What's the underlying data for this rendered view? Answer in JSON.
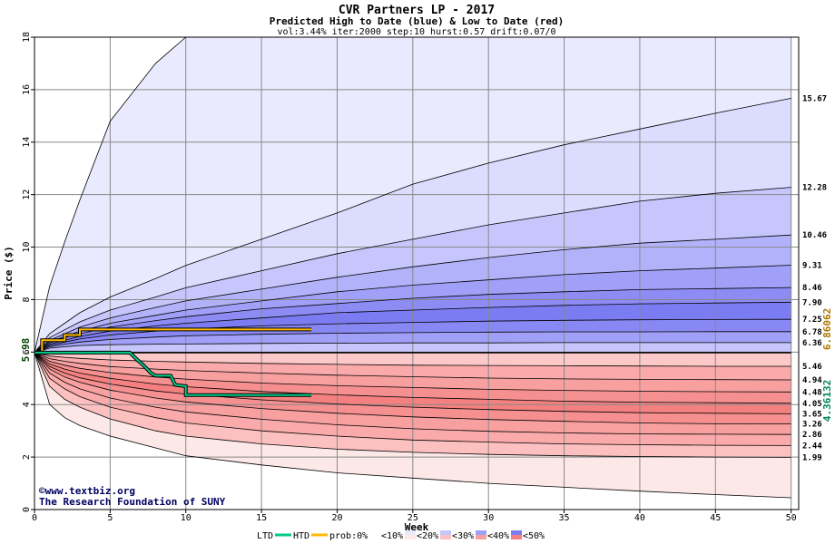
{
  "chart_data": {
    "type": "area",
    "title": "CVR Partners LP - 2017",
    "subtitle": "Predicted High to Date (blue) &  Low to Date (red)",
    "params": "vol:3.44% iter:2000 step:10 hurst:0.57 drift:0.07/0",
    "xlabel": "Week",
    "ylabel": "Price ($)",
    "xlim": [
      0,
      50.5
    ],
    "ylim": [
      0,
      18
    ],
    "x_ticks": [
      0,
      5,
      10,
      15,
      20,
      25,
      30,
      35,
      40,
      45,
      50
    ],
    "y_ticks": [
      0,
      2,
      4,
      6,
      8,
      10,
      12,
      14,
      16,
      18
    ],
    "grid": true,
    "start_price": 5.98,
    "start_label": "5.98",
    "x": [
      0,
      1,
      2,
      3,
      5,
      8,
      10,
      15,
      20,
      25,
      30,
      35,
      40,
      45,
      50
    ],
    "percentile_curves": [
      {
        "values": [
          5.98,
          8.5,
          10.2,
          11.8,
          14.8,
          17.0,
          18.5,
          18.5,
          18.5,
          18.5,
          18.5,
          18.5,
          18.5,
          18.5,
          18.5
        ]
      },
      {
        "values": [
          5.98,
          6.7,
          7.1,
          7.5,
          8.1,
          8.8,
          9.3,
          10.3,
          11.3,
          12.4,
          13.2,
          13.9,
          14.5,
          15.1,
          15.67
        ]
      },
      {
        "values": [
          5.98,
          6.55,
          6.85,
          7.15,
          7.6,
          8.1,
          8.45,
          9.1,
          9.75,
          10.3,
          10.85,
          11.3,
          11.75,
          12.05,
          12.28
        ]
      },
      {
        "values": [
          5.98,
          6.45,
          6.7,
          6.95,
          7.3,
          7.7,
          7.95,
          8.4,
          8.85,
          9.25,
          9.6,
          9.9,
          10.15,
          10.3,
          10.46
        ]
      },
      {
        "values": [
          5.98,
          6.4,
          6.6,
          6.8,
          7.1,
          7.4,
          7.6,
          7.95,
          8.3,
          8.55,
          8.75,
          8.95,
          9.1,
          9.2,
          9.31
        ]
      },
      {
        "values": [
          5.98,
          6.35,
          6.55,
          6.7,
          6.95,
          7.2,
          7.35,
          7.65,
          7.85,
          8.05,
          8.2,
          8.3,
          8.38,
          8.42,
          8.46
        ]
      },
      {
        "values": [
          5.98,
          6.3,
          6.45,
          6.6,
          6.8,
          7.0,
          7.1,
          7.3,
          7.5,
          7.6,
          7.7,
          7.78,
          7.84,
          7.87,
          7.9
        ]
      },
      {
        "values": [
          5.98,
          6.25,
          6.38,
          6.5,
          6.65,
          6.8,
          6.88,
          7.0,
          7.08,
          7.13,
          7.18,
          7.21,
          7.23,
          7.24,
          7.25
        ]
      },
      {
        "values": [
          5.98,
          6.2,
          6.3,
          6.38,
          6.48,
          6.57,
          6.62,
          6.68,
          6.72,
          6.74,
          6.76,
          6.77,
          6.77,
          6.78,
          6.78
        ]
      },
      {
        "values": [
          5.98,
          6.15,
          6.2,
          6.25,
          6.28,
          6.3,
          6.31,
          6.33,
          6.34,
          6.35,
          6.35,
          6.36,
          6.36,
          6.36,
          6.36
        ]
      },
      {
        "values": [
          5.98,
          5.98,
          5.98,
          5.98,
          5.98,
          5.98,
          5.98,
          5.98,
          5.98,
          5.98,
          5.98,
          5.98,
          5.98,
          5.98,
          5.98
        ]
      },
      {
        "values": [
          5.98,
          5.85,
          5.8,
          5.76,
          5.7,
          5.65,
          5.62,
          5.57,
          5.53,
          5.5,
          5.49,
          5.48,
          5.47,
          5.46,
          5.46
        ]
      },
      {
        "values": [
          5.98,
          5.75,
          5.65,
          5.57,
          5.45,
          5.35,
          5.3,
          5.2,
          5.12,
          5.06,
          5.01,
          4.98,
          4.96,
          4.95,
          4.94
        ]
      },
      {
        "values": [
          5.98,
          5.65,
          5.5,
          5.38,
          5.22,
          5.05,
          4.97,
          4.82,
          4.72,
          4.65,
          4.58,
          4.54,
          4.51,
          4.49,
          4.48
        ]
      },
      {
        "values": [
          5.98,
          5.55,
          5.35,
          5.2,
          5.0,
          4.78,
          4.68,
          4.5,
          4.37,
          4.27,
          4.2,
          4.13,
          4.09,
          4.07,
          4.05
        ]
      },
      {
        "values": [
          5.98,
          5.45,
          5.2,
          5.02,
          4.78,
          4.52,
          4.4,
          4.18,
          4.02,
          3.9,
          3.81,
          3.74,
          3.69,
          3.67,
          3.65
        ]
      },
      {
        "values": [
          5.98,
          5.35,
          5.05,
          4.85,
          4.55,
          4.25,
          4.1,
          3.85,
          3.67,
          3.53,
          3.43,
          3.36,
          3.3,
          3.27,
          3.26
        ]
      },
      {
        "values": [
          5.98,
          5.2,
          4.85,
          4.6,
          4.25,
          3.9,
          3.72,
          3.44,
          3.23,
          3.08,
          2.98,
          2.92,
          2.88,
          2.87,
          2.86
        ]
      },
      {
        "values": [
          5.98,
          5.0,
          4.6,
          4.3,
          3.9,
          3.5,
          3.3,
          3.0,
          2.8,
          2.65,
          2.57,
          2.5,
          2.47,
          2.45,
          2.44
        ]
      },
      {
        "values": [
          5.98,
          4.7,
          4.2,
          3.9,
          3.45,
          3.0,
          2.8,
          2.5,
          2.3,
          2.18,
          2.1,
          2.05,
          2.02,
          2.0,
          1.99
        ]
      },
      {
        "values": [
          5.98,
          4.0,
          3.5,
          3.2,
          2.8,
          2.35,
          2.05,
          1.7,
          1.4,
          1.2,
          1.0,
          0.85,
          0.7,
          0.57,
          0.45
        ]
      }
    ],
    "band_fills": [
      "#eaeaff",
      "#dcdcff",
      "#c6c6fc",
      "#b2b2fa",
      "#a0a0f8",
      "#8c8cf4",
      "#7c7cf2",
      "#8888f4",
      "#a0a0f8",
      "#c6c6fc",
      "#fcc8c8",
      "#faaaaa",
      "#f8a0a0",
      "#f69090",
      "#f48080",
      "#f69090",
      "#f8a0a0",
      "#faaaaa",
      "#fcc0c0",
      "#fde8e8"
    ],
    "right_labels": [
      "15.67",
      "12.28",
      "10.46",
      "9.31",
      "8.46",
      "7.90",
      "7.25",
      "6.78",
      "6.36",
      "5.46",
      "4.94",
      "4.48",
      "4.05",
      "3.65",
      "3.26",
      "2.86",
      "2.44",
      "1.99"
    ],
    "right_label_values": [
      15.67,
      12.28,
      10.46,
      9.31,
      8.46,
      7.9,
      7.25,
      6.78,
      6.36,
      5.46,
      4.94,
      4.48,
      4.05,
      3.65,
      3.26,
      2.86,
      2.44,
      1.99
    ],
    "htd": {
      "label": "6.86062",
      "color": "#ffbb00",
      "x": [
        0,
        0.5,
        0.5,
        2,
        2,
        3,
        3,
        18.3
      ],
      "values": [
        5.98,
        5.98,
        6.45,
        6.45,
        6.65,
        6.65,
        6.86,
        6.86
      ]
    },
    "ltd": {
      "label": "4.36132",
      "color": "#00cc88",
      "x": [
        0,
        6.3,
        6.8,
        7.2,
        7.7,
        8,
        9,
        9.3,
        10,
        10,
        18.3
      ],
      "values": [
        5.98,
        5.98,
        5.7,
        5.5,
        5.2,
        5.1,
        5.1,
        4.75,
        4.7,
        4.36,
        4.36
      ]
    },
    "credit_lines": [
      "©www.textbiz.org",
      "The Research Foundation of SUNY"
    ],
    "legend": {
      "items": [
        {
          "label": "LTD",
          "type": "line",
          "color": "#00cc88"
        },
        {
          "label": "HTD",
          "type": "line",
          "color": "#ffbb00"
        },
        {
          "label": "prob:0%",
          "type": "text"
        },
        {
          "label": "<10%",
          "type": "swatch",
          "top": "#ffffff",
          "bottom": "#ffffff"
        },
        {
          "label": "<20%",
          "type": "swatch",
          "top": "#eaeaff",
          "bottom": "#fde8e8"
        },
        {
          "label": "<30%",
          "type": "swatch",
          "top": "#c6c6fc",
          "bottom": "#fcc0c0"
        },
        {
          "label": "<40%",
          "type": "swatch",
          "top": "#a0a0f8",
          "bottom": "#f8a0a0"
        },
        {
          "label": "<50%",
          "type": "swatch",
          "top": "#7c7cf2",
          "bottom": "#f48080"
        }
      ]
    }
  }
}
